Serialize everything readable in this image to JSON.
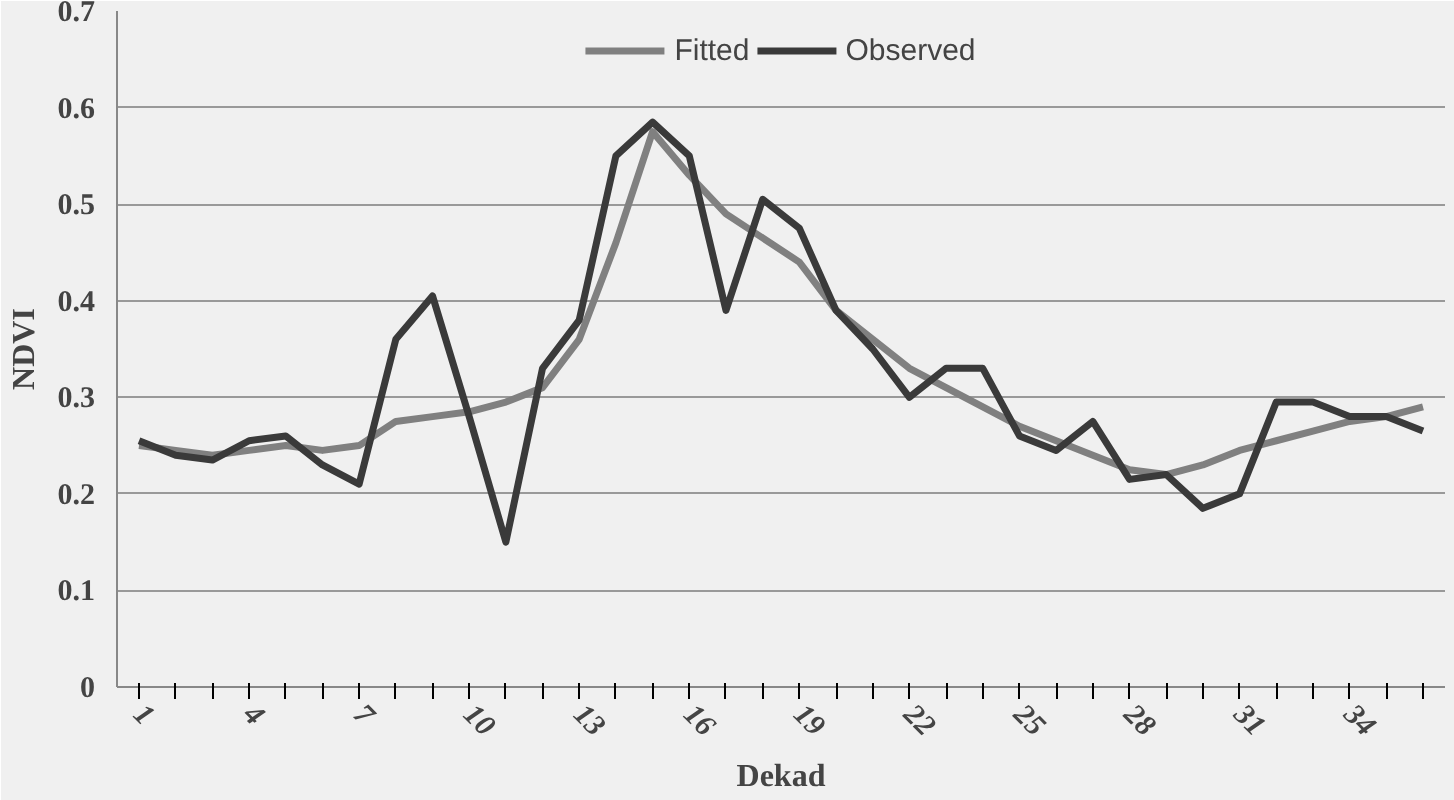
{
  "chart_data": {
    "type": "line",
    "xlabel": "Dekad",
    "ylabel": "NDVI",
    "categories": [
      "1",
      null,
      null,
      "4",
      null,
      null,
      "7",
      null,
      null,
      "10",
      null,
      null,
      "13",
      null,
      null,
      "16",
      null,
      null,
      "19",
      null,
      null,
      "22",
      null,
      null,
      "25",
      null,
      null,
      "28",
      null,
      null,
      "31",
      null,
      null,
      "34",
      null,
      null
    ],
    "series": [
      {
        "name": "Fitted",
        "color": "#808080",
        "values": [
          0.25,
          0.245,
          0.24,
          0.245,
          0.25,
          0.245,
          0.25,
          0.275,
          0.28,
          0.285,
          0.295,
          0.31,
          0.36,
          0.46,
          0.575,
          0.53,
          0.49,
          0.465,
          0.44,
          0.39,
          0.36,
          0.33,
          0.31,
          0.29,
          0.27,
          0.255,
          0.24,
          0.225,
          0.22,
          0.23,
          0.245,
          0.255,
          0.265,
          0.275,
          0.28,
          0.29
        ]
      },
      {
        "name": "Observed",
        "color": "#3a3a3a",
        "values": [
          0.255,
          0.24,
          0.235,
          0.255,
          0.26,
          0.23,
          0.21,
          0.36,
          0.405,
          0.28,
          0.15,
          0.33,
          0.38,
          0.55,
          0.585,
          0.55,
          0.39,
          0.505,
          0.475,
          0.39,
          0.35,
          0.3,
          0.33,
          0.33,
          0.26,
          0.245,
          0.275,
          0.215,
          0.22,
          0.185,
          0.2,
          0.295,
          0.295,
          0.28,
          0.28,
          0.265
        ]
      }
    ],
    "ylim": [
      0,
      0.7
    ],
    "yticks": [
      0,
      0.1,
      0.2,
      0.3,
      0.4,
      0.5,
      0.6,
      0.7
    ],
    "grid": "y",
    "legend": "top",
    "marker": "none",
    "line_style": "solid"
  }
}
